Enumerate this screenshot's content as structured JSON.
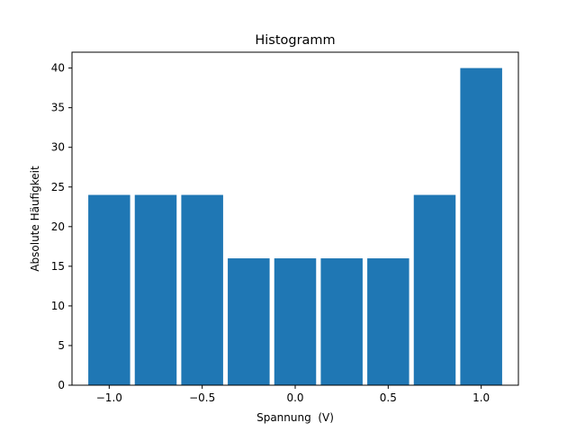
{
  "chart_data": {
    "type": "bar",
    "title": "Histogramm",
    "xlabel": "Spannung  (V)",
    "ylabel": "Absolute Häufigkeit",
    "bins": [
      {
        "center": -1.0,
        "value": 24
      },
      {
        "center": -0.75,
        "value": 24
      },
      {
        "center": -0.5,
        "value": 24
      },
      {
        "center": -0.25,
        "value": 16
      },
      {
        "center": 0.0,
        "value": 16
      },
      {
        "center": 0.25,
        "value": 16
      },
      {
        "center": 0.5,
        "value": 16
      },
      {
        "center": 0.75,
        "value": 24
      },
      {
        "center": 1.0,
        "value": 40
      }
    ],
    "bin_width": 0.25,
    "bar_width_fraction": 0.9,
    "xlim": [
      -1.2,
      1.2
    ],
    "ylim": [
      0,
      42
    ],
    "xticks": [
      {
        "value": -1.0,
        "label": "−1.0"
      },
      {
        "value": -0.5,
        "label": "−0.5"
      },
      {
        "value": 0.0,
        "label": "0.0"
      },
      {
        "value": 0.5,
        "label": "0.5"
      },
      {
        "value": 1.0,
        "label": "1.0"
      }
    ],
    "yticks": [
      {
        "value": 0,
        "label": "0"
      },
      {
        "value": 5,
        "label": "5"
      },
      {
        "value": 10,
        "label": "10"
      },
      {
        "value": 15,
        "label": "15"
      },
      {
        "value": 20,
        "label": "20"
      },
      {
        "value": 25,
        "label": "25"
      },
      {
        "value": 30,
        "label": "30"
      },
      {
        "value": 35,
        "label": "35"
      },
      {
        "value": 40,
        "label": "40"
      }
    ],
    "bar_color": "#1f77b4",
    "grid": false,
    "legend": "none"
  }
}
